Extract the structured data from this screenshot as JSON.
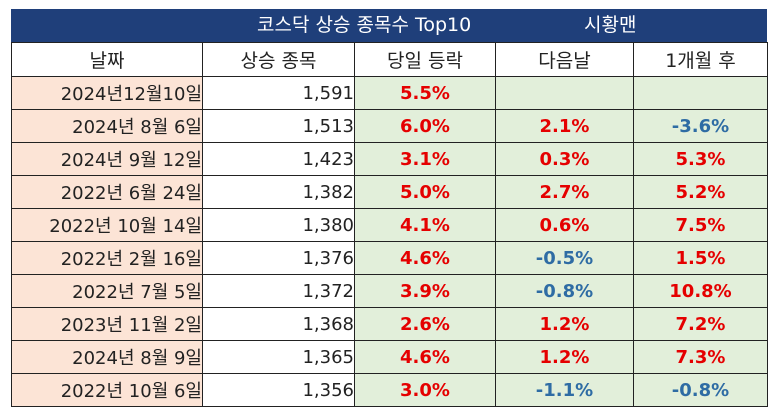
{
  "title": {
    "main": "코스닥 상승 종목수 Top10",
    "author": "시황맨"
  },
  "colors": {
    "header_bg": "#1f3f7a",
    "date_bg": "#fce4d6",
    "value_bg": "#e2efda",
    "positive": "#e50000",
    "negative": "#2e6ca4"
  },
  "columns": [
    "날짜",
    "상승 종목",
    "당일 등락",
    "다음날",
    "1개월 후"
  ],
  "rows": [
    {
      "date": "2024년12월10일",
      "count": "1,591",
      "same_day": "5.5%",
      "next_day": "",
      "month_after": ""
    },
    {
      "date": "2024년 8월 6일",
      "count": "1,513",
      "same_day": "6.0%",
      "next_day": "2.1%",
      "month_after": "-3.6%"
    },
    {
      "date": "2024년 9월 12일",
      "count": "1,423",
      "same_day": "3.1%",
      "next_day": "0.3%",
      "month_after": "5.3%"
    },
    {
      "date": "2022년 6월 24일",
      "count": "1,382",
      "same_day": "5.0%",
      "next_day": "2.7%",
      "month_after": "5.2%"
    },
    {
      "date": "2022년 10월 14일",
      "count": "1,380",
      "same_day": "4.1%",
      "next_day": "0.6%",
      "month_after": "7.5%"
    },
    {
      "date": "2022년 2월 16일",
      "count": "1,376",
      "same_day": "4.6%",
      "next_day": "-0.5%",
      "month_after": "1.5%"
    },
    {
      "date": "2022년 7월 5일",
      "count": "1,372",
      "same_day": "3.9%",
      "next_day": "-0.8%",
      "month_after": "10.8%"
    },
    {
      "date": "2023년 11월 2일",
      "count": "1,368",
      "same_day": "2.6%",
      "next_day": "1.2%",
      "month_after": "7.2%"
    },
    {
      "date": "2024년 8월 9일",
      "count": "1,365",
      "same_day": "4.6%",
      "next_day": "1.2%",
      "month_after": "7.3%"
    },
    {
      "date": "2022년 10월 6일",
      "count": "1,356",
      "same_day": "3.0%",
      "next_day": "-1.1%",
      "month_after": "-0.8%"
    }
  ]
}
